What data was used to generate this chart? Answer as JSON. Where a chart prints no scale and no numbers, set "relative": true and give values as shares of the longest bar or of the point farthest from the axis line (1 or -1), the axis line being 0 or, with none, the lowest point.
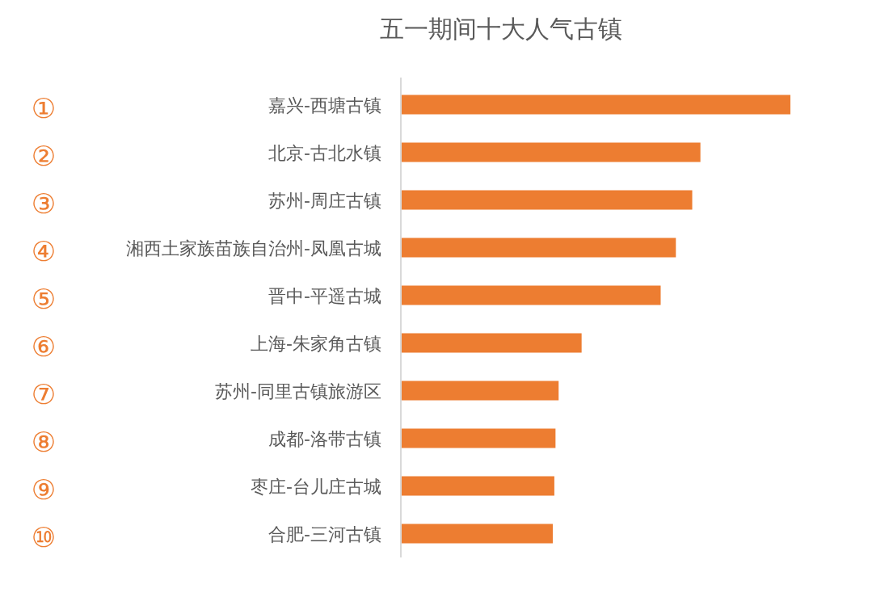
{
  "chart_data": {
    "type": "bar",
    "orientation": "horizontal",
    "relative": true,
    "title": "五一期间十大人气古镇",
    "categories": [
      "嘉兴-西塘古镇",
      "北京-古北水镇",
      "苏州-周庄古镇",
      "湘西土家族苗族自治州-凤凰古城",
      "晋中-平遥古城",
      "上海-朱家角古镇",
      "苏州-同里古镇旅游区",
      "成都-洛带古镇",
      "枣庄-台儿庄古城",
      "合肥-三河古镇"
    ],
    "values": [
      1,
      0.769,
      0.748,
      0.706,
      0.667,
      0.464,
      0.405,
      0.397,
      0.394,
      0.39
    ],
    "color": "#ed7d31",
    "annotations": [
      "①",
      "②",
      "③",
      "④",
      "⑤",
      "⑥",
      "⑦",
      "⑧",
      "⑨",
      "⑩"
    ]
  }
}
